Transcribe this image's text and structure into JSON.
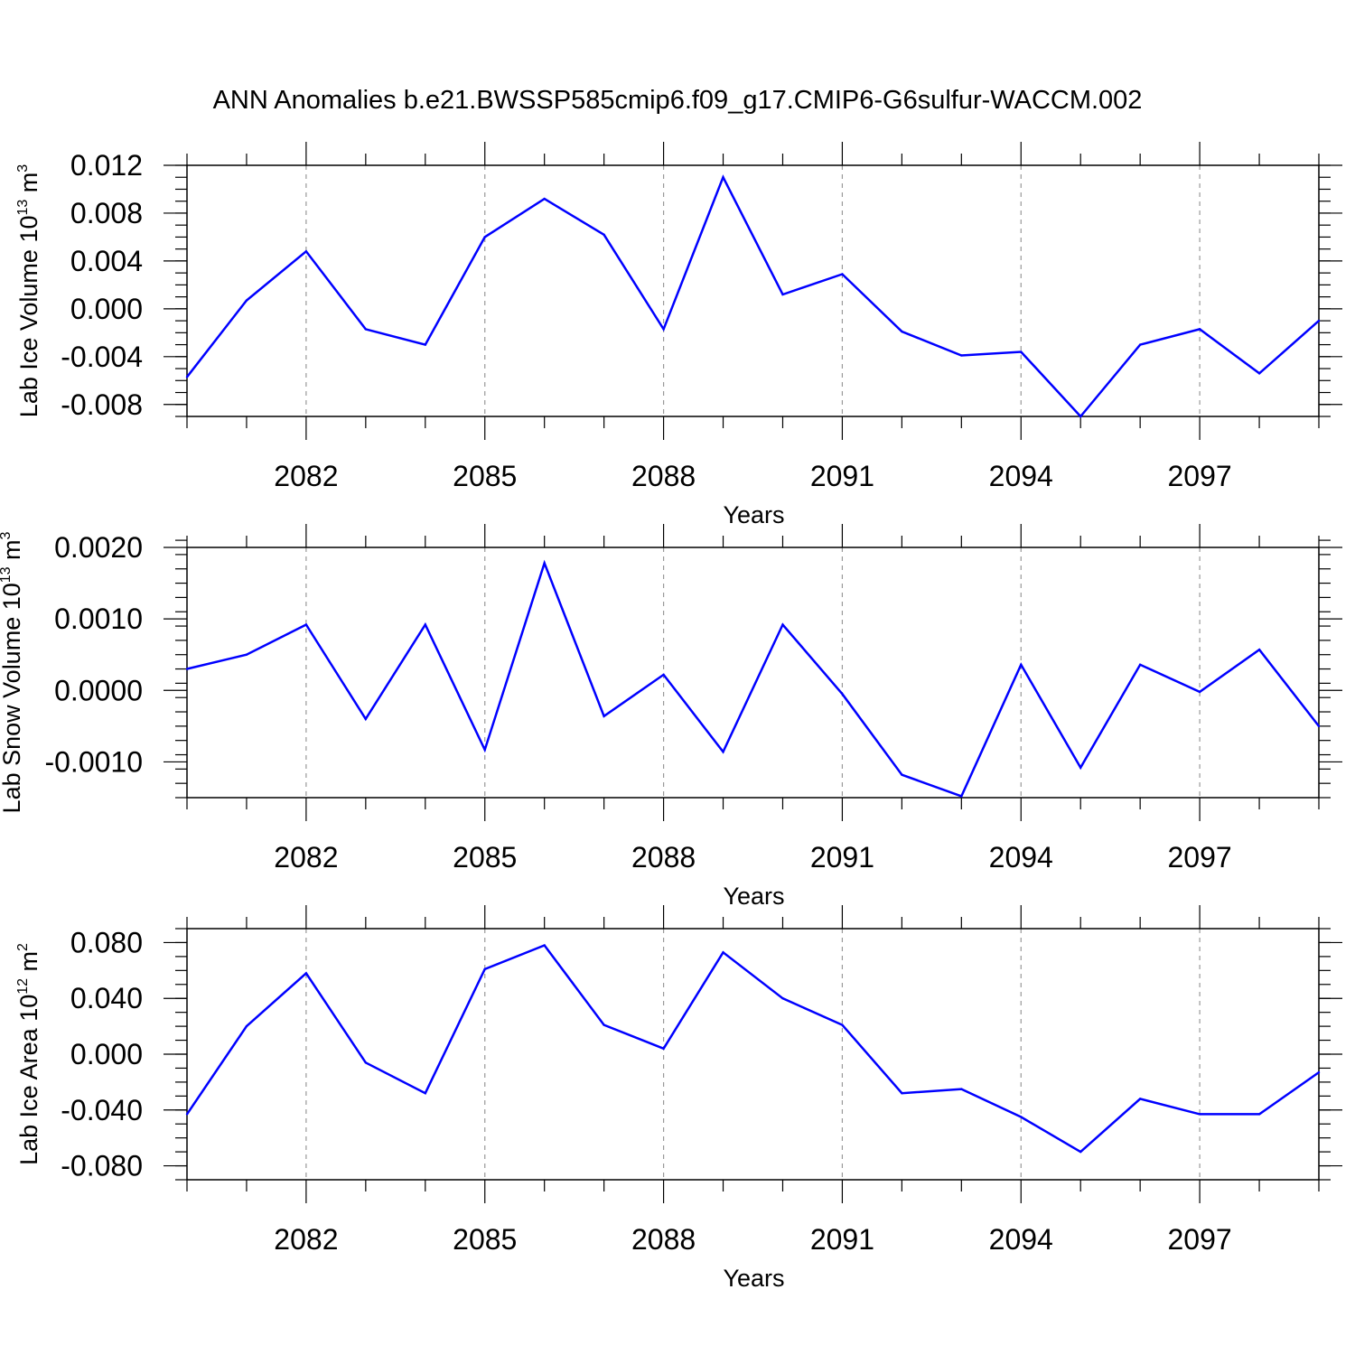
{
  "figure": {
    "title": "ANN Anomalies b.e21.BWSSP585cmip6.f09_g17.CMIP6-G6sulfur-WACCM.002"
  },
  "chart_data": [
    {
      "type": "line",
      "ylabel_main": "Lab Ice Volume 10",
      "ylabel_exp": "13",
      "ylabel_unit": " m",
      "ylabel_unit_exp": "3",
      "xlabel": "Years",
      "xlim": [
        2080,
        2099
      ],
      "ylim": [
        -0.009,
        0.012
      ],
      "xticks": [
        2082,
        2085,
        2088,
        2091,
        2094,
        2097
      ],
      "xtick_labels": [
        "2082",
        "2085",
        "2088",
        "2091",
        "2094",
        "2097"
      ],
      "yticks": [
        0.012,
        0.008,
        0.004,
        0.0,
        -0.004,
        -0.008
      ],
      "ytick_labels": [
        "0.012",
        "0.008",
        "0.004",
        "0.000",
        "-0.004",
        "-0.008"
      ],
      "yminor_step": 0.001,
      "grid": "vertical dashed at major x ticks",
      "color": "#0000ff",
      "x": [
        2080,
        2081,
        2082,
        2083,
        2084,
        2085,
        2086,
        2087,
        2088,
        2089,
        2090,
        2091,
        2092,
        2093,
        2094,
        2095,
        2096,
        2097,
        2098,
        2099
      ],
      "values": [
        -0.0057,
        0.0007,
        0.0048,
        -0.0017,
        -0.003,
        0.006,
        0.0092,
        0.0062,
        -0.0017,
        0.011,
        0.0012,
        0.0029,
        -0.0019,
        -0.0039,
        -0.0036,
        -0.009,
        -0.003,
        -0.0017,
        -0.0054,
        -0.001
      ]
    },
    {
      "type": "line",
      "ylabel_main": "Lab Snow Volume 10",
      "ylabel_exp": "13",
      "ylabel_unit": " m",
      "ylabel_unit_exp": "3",
      "xlabel": "Years",
      "xlim": [
        2080,
        2099
      ],
      "ylim": [
        -0.0015,
        0.002
      ],
      "xticks": [
        2082,
        2085,
        2088,
        2091,
        2094,
        2097
      ],
      "xtick_labels": [
        "2082",
        "2085",
        "2088",
        "2091",
        "2094",
        "2097"
      ],
      "yticks": [
        0.002,
        0.001,
        0.0,
        -0.001
      ],
      "ytick_labels": [
        "0.0020",
        "0.0010",
        "0.0000",
        "-0.0010"
      ],
      "yminor_step": 0.0002,
      "grid": "vertical dashed at major x ticks",
      "color": "#0000ff",
      "x": [
        2080,
        2081,
        2082,
        2083,
        2084,
        2085,
        2086,
        2087,
        2088,
        2089,
        2090,
        2091,
        2092,
        2093,
        2094,
        2095,
        2096,
        2097,
        2098,
        2099
      ],
      "values": [
        0.0003,
        0.0005,
        0.00092,
        -0.0004,
        0.00092,
        -0.00083,
        0.00178,
        -0.00036,
        0.00022,
        -0.00086,
        0.00092,
        -5e-05,
        -0.00118,
        -0.00148,
        0.00036,
        -0.00108,
        0.00036,
        -2e-05,
        0.00057,
        -0.0005
      ]
    },
    {
      "type": "line",
      "ylabel_main": "Lab Ice Area 10",
      "ylabel_exp": "12",
      "ylabel_unit": " m",
      "ylabel_unit_exp": "2",
      "xlabel": "Years",
      "xlim": [
        2080,
        2099
      ],
      "ylim": [
        -0.09,
        0.09
      ],
      "xticks": [
        2082,
        2085,
        2088,
        2091,
        2094,
        2097
      ],
      "xtick_labels": [
        "2082",
        "2085",
        "2088",
        "2091",
        "2094",
        "2097"
      ],
      "yticks": [
        0.08,
        0.04,
        0.0,
        -0.04,
        -0.08
      ],
      "ytick_labels": [
        "0.080",
        "0.040",
        "0.000",
        "-0.040",
        "-0.080"
      ],
      "yminor_step": 0.01,
      "grid": "vertical dashed at major x ticks",
      "color": "#0000ff",
      "x": [
        2080,
        2081,
        2082,
        2083,
        2084,
        2085,
        2086,
        2087,
        2088,
        2089,
        2090,
        2091,
        2092,
        2093,
        2094,
        2095,
        2096,
        2097,
        2098,
        2099
      ],
      "values": [
        -0.043,
        0.02,
        0.058,
        -0.006,
        -0.028,
        0.061,
        0.078,
        0.021,
        0.004,
        0.073,
        0.04,
        0.021,
        -0.028,
        -0.025,
        -0.045,
        -0.07,
        -0.032,
        -0.043,
        -0.043,
        -0.013
      ]
    }
  ]
}
